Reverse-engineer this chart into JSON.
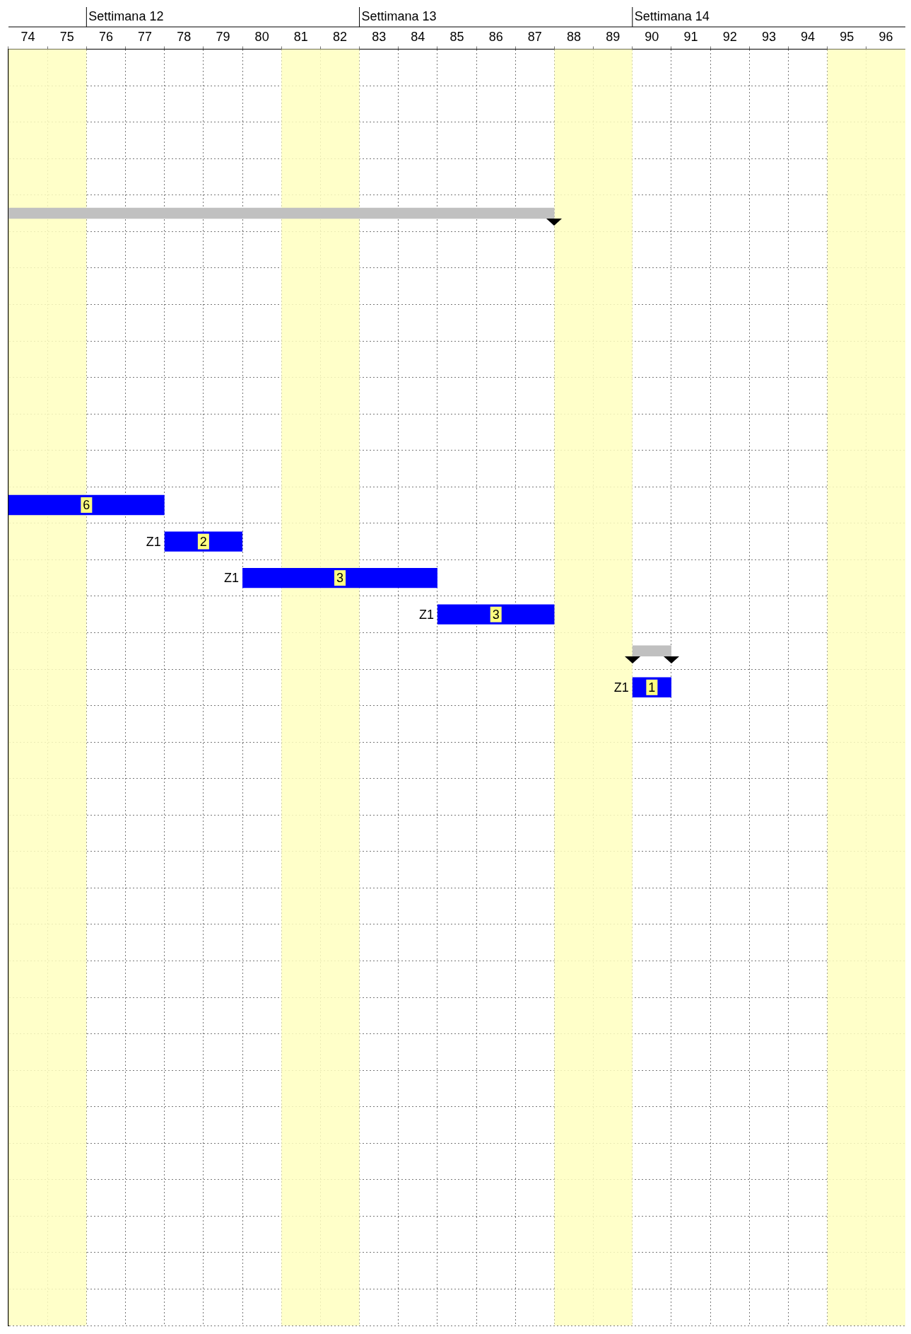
{
  "chart_data": {
    "type": "bar",
    "orientation": "horizontal",
    "categories": [
      null,
      null,
      null,
      null,
      null,
      null,
      null,
      null,
      null,
      null,
      null,
      null,
      null,
      null,
      null,
      null,
      null,
      null,
      null,
      null,
      null,
      null,
      null,
      null,
      null,
      null,
      null,
      null,
      null,
      null,
      null,
      null,
      null,
      null,
      null
    ],
    "series": [
      {
        "color": "#c0c0c0",
        "base": [
          null,
          null,
          null,
          null,
          74,
          null,
          null,
          null,
          null,
          null,
          null,
          null,
          null,
          null,
          null,
          null,
          90,
          null,
          null,
          null,
          null,
          null,
          null,
          null,
          null,
          null,
          null,
          null,
          null,
          null,
          null,
          null,
          null,
          null,
          null
        ],
        "values": [
          null,
          null,
          null,
          null,
          14,
          null,
          null,
          null,
          null,
          null,
          null,
          null,
          null,
          null,
          null,
          null,
          1,
          null,
          null,
          null,
          null,
          null,
          null,
          null,
          null,
          null,
          null,
          null,
          null,
          null,
          null,
          null,
          null,
          null,
          null
        ]
      },
      {
        "color": "#0000ff",
        "base": [
          null,
          null,
          null,
          null,
          null,
          null,
          null,
          null,
          null,
          null,
          null,
          null,
          74,
          78,
          80,
          85,
          null,
          90,
          null,
          null,
          null,
          null,
          null,
          null,
          null,
          null,
          null,
          null,
          null,
          null,
          null,
          null,
          null,
          null,
          null
        ],
        "values": [
          null,
          null,
          null,
          null,
          null,
          null,
          null,
          null,
          null,
          null,
          null,
          null,
          4,
          2,
          5,
          3,
          null,
          1,
          null,
          null,
          null,
          null,
          null,
          null,
          null,
          null,
          null,
          null,
          null,
          null,
          null,
          null,
          null,
          null,
          null
        ]
      }
    ],
    "xlim": [
      74,
      97
    ],
    "xticks": [
      {
        "value": 74.5,
        "label": "74"
      },
      {
        "value": 75.5,
        "label": "75"
      },
      {
        "value": 76.5,
        "label": "76"
      },
      {
        "value": 77.5,
        "label": "77"
      },
      {
        "value": 78.5,
        "label": "78"
      },
      {
        "value": 79.5,
        "label": "79"
      },
      {
        "value": 80.5,
        "label": "80"
      },
      {
        "value": 81.5,
        "label": "81"
      },
      {
        "value": 82.5,
        "label": "82"
      },
      {
        "value": 83.5,
        "label": "83"
      },
      {
        "value": 84.5,
        "label": "84"
      },
      {
        "value": 85.5,
        "label": "85"
      },
      {
        "value": 86.5,
        "label": "86"
      },
      {
        "value": 87.5,
        "label": "87"
      },
      {
        "value": 88.5,
        "label": "88"
      },
      {
        "value": 89.5,
        "label": "89"
      },
      {
        "value": 90.5,
        "label": "90"
      },
      {
        "value": 91.5,
        "label": "91"
      },
      {
        "value": 92.5,
        "label": "92"
      },
      {
        "value": 93.5,
        "label": "93"
      },
      {
        "value": 94.5,
        "label": "94"
      },
      {
        "value": 95.5,
        "label": "95"
      },
      {
        "value": 96.5,
        "label": "96"
      }
    ],
    "bands": [
      {
        "axis": "x",
        "from": 74,
        "to": 76,
        "color": "#ffffc0"
      },
      {
        "axis": "x",
        "from": 81,
        "to": 83,
        "color": "#ffffc0"
      },
      {
        "axis": "x",
        "from": 88,
        "to": 90,
        "color": "#ffffc0"
      },
      {
        "axis": "x",
        "from": 95,
        "to": 97,
        "color": "#ffffc0"
      }
    ],
    "annotations": [
      "Settimana 12",
      "Settimana 13",
      "Settimana 14",
      {
        "text": "6",
        "x": 76
      },
      {
        "text": "2",
        "x": 79
      },
      {
        "text": "3",
        "x": 82.5
      },
      {
        "text": "3",
        "x": 86.5
      },
      {
        "text": "1",
        "x": 90.5
      },
      {
        "text": "Z1",
        "x": 78
      },
      {
        "text": "Z1",
        "x": 80
      },
      {
        "text": "Z1",
        "x": 85
      },
      {
        "text": "Z1",
        "x": 90
      }
    ],
    "grid": true,
    "legend": false,
    "tick_labels": "x"
  }
}
